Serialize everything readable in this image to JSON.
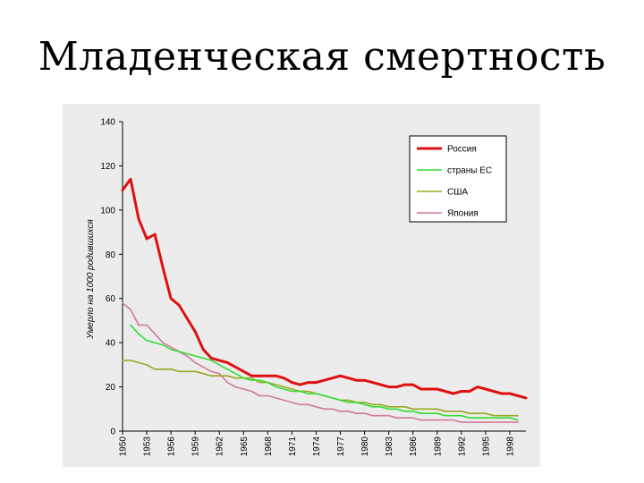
{
  "slide": {
    "title": "Младенческая смертность"
  },
  "chart_data": {
    "type": "line",
    "title": "",
    "xlabel": "",
    "ylabel": "Умерло на 1000 родившихся",
    "ylim": [
      0,
      140
    ],
    "yticks": [
      0,
      20,
      40,
      60,
      80,
      100,
      120,
      140
    ],
    "xlim": [
      1950,
      2000
    ],
    "xticks": [
      1950,
      1953,
      1956,
      1959,
      1962,
      1965,
      1968,
      1971,
      1974,
      1977,
      1980,
      1983,
      1986,
      1989,
      1992,
      1995,
      1998
    ],
    "grid": false,
    "legend_position": "top-right",
    "series": [
      {
        "name": "Россия",
        "color": "#e01010",
        "x": [
          1950,
          1951,
          1952,
          1953,
          1954,
          1955,
          1956,
          1957,
          1958,
          1959,
          1960,
          1961,
          1962,
          1963,
          1964,
          1965,
          1966,
          1967,
          1968,
          1969,
          1970,
          1971,
          1972,
          1973,
          1974,
          1975,
          1976,
          1977,
          1978,
          1979,
          1980,
          1981,
          1982,
          1983,
          1984,
          1985,
          1986,
          1987,
          1988,
          1989,
          1990,
          1991,
          1992,
          1993,
          1994,
          1995,
          1996,
          1997,
          1998,
          1999,
          2000
        ],
        "values": [
          109,
          114,
          96,
          87,
          89,
          74,
          60,
          57,
          51,
          45,
          37,
          33,
          32,
          31,
          29,
          27,
          25,
          25,
          25,
          25,
          24,
          22,
          21,
          22,
          22,
          23,
          24,
          25,
          24,
          23,
          23,
          22,
          21,
          20,
          20,
          21,
          21,
          19,
          19,
          19,
          18,
          17,
          18,
          18,
          20,
          19,
          18,
          17,
          17,
          16,
          15
        ]
      },
      {
        "name": "страны ЕС",
        "color": "#33dd33",
        "x": [
          1951,
          1952,
          1953,
          1954,
          1955,
          1956,
          1957,
          1958,
          1959,
          1960,
          1961,
          1962,
          1963,
          1964,
          1965,
          1966,
          1967,
          1968,
          1969,
          1970,
          1971,
          1972,
          1973,
          1974,
          1975,
          1976,
          1977,
          1978,
          1979,
          1980,
          1981,
          1982,
          1983,
          1984,
          1985,
          1986,
          1987,
          1988,
          1989,
          1990,
          1991,
          1992,
          1993,
          1994,
          1995,
          1996,
          1997,
          1998,
          1999
        ],
        "values": [
          48,
          44,
          41,
          40,
          39,
          37,
          36,
          35,
          34,
          33,
          32,
          30,
          28,
          26,
          24,
          23,
          23,
          22,
          20,
          19,
          18,
          18,
          17,
          17,
          16,
          15,
          14,
          13,
          13,
          12,
          11,
          11,
          10,
          10,
          9,
          9,
          8,
          8,
          8,
          7,
          7,
          7,
          6,
          6,
          6,
          6,
          6,
          6,
          5
        ]
      },
      {
        "name": "США",
        "color": "#99a822",
        "x": [
          1950,
          1951,
          1952,
          1953,
          1954,
          1955,
          1956,
          1957,
          1958,
          1959,
          1960,
          1961,
          1962,
          1963,
          1964,
          1965,
          1966,
          1967,
          1968,
          1969,
          1970,
          1971,
          1972,
          1973,
          1974,
          1975,
          1976,
          1977,
          1978,
          1979,
          1980,
          1981,
          1982,
          1983,
          1984,
          1985,
          1986,
          1987,
          1988,
          1989,
          1990,
          1991,
          1992,
          1993,
          1994,
          1995,
          1996,
          1997,
          1998,
          1999
        ],
        "values": [
          32,
          32,
          31,
          30,
          28,
          28,
          28,
          27,
          27,
          27,
          26,
          25,
          25,
          25,
          24,
          24,
          24,
          22,
          22,
          21,
          20,
          19,
          18,
          18,
          17,
          16,
          15,
          14,
          14,
          13,
          13,
          12,
          12,
          11,
          11,
          11,
          10,
          10,
          10,
          10,
          9,
          9,
          9,
          8,
          8,
          8,
          7,
          7,
          7,
          7
        ]
      },
      {
        "name": "Япония",
        "color": "#d07a9a",
        "x": [
          1950,
          1951,
          1952,
          1953,
          1954,
          1955,
          1956,
          1957,
          1958,
          1959,
          1960,
          1961,
          1962,
          1963,
          1964,
          1965,
          1966,
          1967,
          1968,
          1969,
          1970,
          1971,
          1972,
          1973,
          1974,
          1975,
          1976,
          1977,
          1978,
          1979,
          1980,
          1981,
          1982,
          1983,
          1984,
          1985,
          1986,
          1987,
          1988,
          1989,
          1990,
          1991,
          1992,
          1993,
          1994,
          1995,
          1996,
          1997,
          1998,
          1999
        ],
        "values": [
          58,
          55,
          48,
          48,
          44,
          40,
          38,
          36,
          34,
          31,
          29,
          27,
          26,
          22,
          20,
          19,
          18,
          16,
          16,
          15,
          14,
          13,
          12,
          12,
          11,
          10,
          10,
          9,
          9,
          8,
          8,
          7,
          7,
          7,
          6,
          6,
          6,
          5,
          5,
          5,
          5,
          5,
          4,
          4,
          4,
          4,
          4,
          4,
          4,
          4
        ]
      }
    ]
  }
}
